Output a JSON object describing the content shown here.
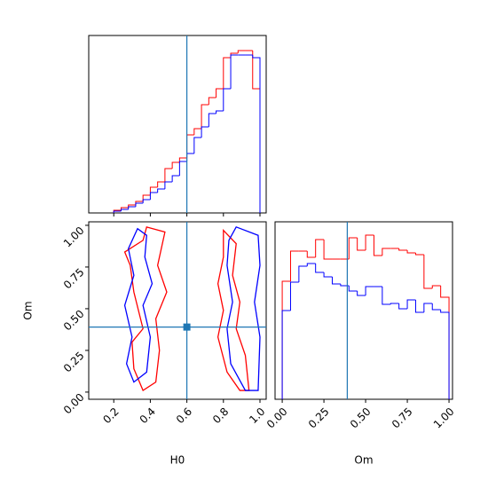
{
  "chart_data": [
    {
      "type": "histogram",
      "bins": [
        0.2,
        0.24,
        0.28,
        0.32,
        0.36,
        0.4,
        0.44,
        0.48,
        0.52,
        0.56,
        0.6,
        0.64,
        0.68,
        0.72,
        0.76,
        0.8,
        0.84,
        0.88,
        0.92,
        0.96,
        1.0
      ],
      "series": [
        {
          "color": "red",
          "values": [
            3,
            6,
            9,
            13,
            20,
            29,
            35,
            50,
            57,
            62,
            88,
            95,
            122,
            130,
            140,
            175,
            180,
            183,
            183,
            140
          ]
        },
        {
          "color": "blue",
          "values": [
            2,
            4,
            7,
            11,
            15,
            23,
            27,
            35,
            42,
            58,
            67,
            85,
            97,
            112,
            115,
            140,
            178,
            178,
            178,
            175
          ]
        }
      ],
      "xlim": [
        0.063,
        1.034
      ],
      "ylim": [
        0,
        200
      ],
      "xticks": [
        0.2,
        0.4,
        0.6,
        0.8,
        1
      ],
      "truth": 0.6,
      "truth_color": "#1f77b4"
    },
    {
      "type": "contour",
      "xlabel": "H0",
      "ylabel": "Om",
      "xlim": [
        0.063,
        1.034
      ],
      "ylim": [
        -0.043,
        1.021
      ],
      "xticks": [
        0.2,
        0.4,
        0.6,
        0.8,
        {
          "value": 1,
          "label": "1.0"
        }
      ],
      "yticks": [
        {
          "value": 0,
          "label": "0.00"
        },
        0.25,
        {
          "value": 0.5,
          "label": "0.50"
        },
        0.75,
        {
          "value": 1,
          "label": "1.00"
        }
      ],
      "series": [
        {
          "color": "red",
          "x": [
            0.38,
            0.48,
            0.44,
            0.49,
            0.43,
            0.45,
            0.43,
            0.36,
            0.31,
            0.3,
            0.36,
            0.31,
            0.29,
            0.26,
            0.36
          ],
          "y": [
            0.99,
            0.96,
            0.76,
            0.6,
            0.44,
            0.25,
            0.06,
            0.01,
            0.14,
            0.3,
            0.38,
            0.6,
            0.76,
            0.84,
            0.91
          ]
        },
        {
          "color": "red",
          "x": [
            0.8,
            0.87,
            0.85,
            0.89,
            0.87,
            0.92,
            0.94,
            0.89,
            0.82,
            0.77,
            0.8,
            0.77,
            0.8
          ],
          "y": [
            0.97,
            0.89,
            0.7,
            0.54,
            0.38,
            0.22,
            0.01,
            0.01,
            0.12,
            0.33,
            0.49,
            0.65,
            0.81
          ]
        },
        {
          "color": "blue",
          "x": [
            0.33,
            0.38,
            0.37,
            0.41,
            0.36,
            0.4,
            0.38,
            0.31,
            0.27,
            0.3,
            0.26,
            0.31,
            0.28
          ],
          "y": [
            0.98,
            0.94,
            0.81,
            0.65,
            0.52,
            0.33,
            0.12,
            0.06,
            0.17,
            0.33,
            0.52,
            0.7,
            0.86
          ]
        },
        {
          "color": "blue",
          "x": [
            0.87,
            0.99,
            1.0,
            0.97,
            1.0,
            0.99,
            0.92,
            0.84,
            0.82,
            0.85,
            0.82,
            0.83
          ],
          "y": [
            0.99,
            0.94,
            0.76,
            0.54,
            0.33,
            0.01,
            0.01,
            0.17,
            0.38,
            0.54,
            0.76,
            0.91
          ]
        }
      ],
      "truth": [
        0.6,
        0.39
      ],
      "truth_color": "#1f77b4"
    },
    {
      "type": "histogram",
      "xlabel": "Om",
      "bins": [
        0,
        0.05,
        0.1,
        0.15,
        0.2,
        0.25,
        0.3,
        0.35,
        0.4,
        0.45,
        0.5,
        0.55,
        0.6,
        0.65,
        0.7,
        0.75,
        0.8,
        0.85,
        0.9,
        0.95,
        1.0
      ],
      "series": [
        {
          "color": "red",
          "values": [
            133,
            167,
            167,
            160,
            180,
            158,
            158,
            158,
            182,
            168,
            185,
            162,
            170,
            170,
            168,
            165,
            163,
            125,
            128,
            115
          ]
        },
        {
          "color": "blue",
          "values": [
            100,
            132,
            150,
            153,
            143,
            138,
            130,
            128,
            122,
            117,
            127,
            127,
            107,
            108,
            102,
            112,
            98,
            108,
            101,
            98
          ]
        }
      ],
      "xlim": [
        -0.043,
        1.021
      ],
      "ylim": [
        0,
        200
      ],
      "xticks": [
        {
          "value": 0,
          "label": "0.00"
        },
        0.25,
        {
          "value": 0.5,
          "label": "0.50"
        },
        0.75,
        {
          "value": 1,
          "label": "1.00"
        }
      ],
      "truth": 0.39,
      "truth_color": "#1f77b4"
    }
  ]
}
